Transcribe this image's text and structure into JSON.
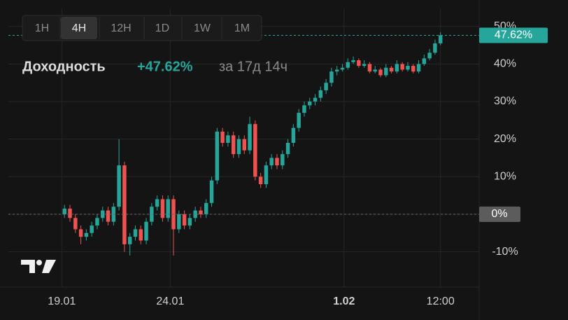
{
  "header": {
    "label": "Доходность",
    "return": "+47.62%",
    "period": "за 17д 14ч"
  },
  "intervals": {
    "items": [
      "1H",
      "4H",
      "12H",
      "1D",
      "1W",
      "1M"
    ],
    "active": "4H"
  },
  "chart_data": {
    "type": "candlestick",
    "open": [
      0,
      1.5,
      -1,
      -4,
      -6,
      -5,
      -3,
      -1,
      1,
      -2,
      2,
      13,
      -8,
      -6,
      -4,
      -7,
      -2,
      2,
      4,
      -1,
      4,
      -4,
      0,
      -3,
      -1,
      1,
      0,
      3,
      9,
      22,
      19,
      21,
      16,
      20,
      17,
      24,
      10,
      8,
      13,
      15,
      13,
      16,
      19,
      23,
      27,
      29,
      30,
      31,
      33,
      35,
      38,
      38.5,
      39,
      40.5,
      41,
      39.5,
      40,
      38,
      38.5,
      37,
      39,
      38,
      40,
      38.5,
      39.5,
      38,
      40,
      41.5,
      43,
      45.5
    ],
    "high": [
      2.5,
      2.5,
      0,
      -3,
      -4,
      -2,
      0,
      2,
      2,
      3,
      20,
      14,
      -5,
      -3,
      -3,
      -1,
      3,
      5,
      5,
      5,
      5,
      1,
      1,
      0,
      2,
      2,
      4,
      10,
      23,
      23,
      22,
      22,
      21,
      21,
      26,
      25,
      11,
      14,
      16,
      16,
      17,
      20,
      24,
      28,
      30,
      31,
      32,
      34,
      36,
      39,
      39.5,
      40,
      41.5,
      42,
      41.5,
      41,
      40.5,
      39.5,
      39,
      40,
      39.5,
      41,
      40.5,
      40.5,
      40,
      41,
      42.5,
      44,
      46.5,
      48.5
    ],
    "low": [
      -1,
      -2,
      -5,
      -8,
      -7,
      -6,
      -4,
      -2,
      -3,
      -3,
      1,
      -10,
      -11,
      -7,
      -8,
      -8,
      -3,
      1,
      -2,
      -2,
      -11,
      -5,
      -4,
      -4,
      -2,
      -1,
      -1,
      2,
      8,
      18,
      18,
      15,
      15,
      16,
      16,
      9,
      7,
      7,
      12,
      12,
      12,
      15,
      18,
      22,
      26,
      28,
      29,
      30,
      32,
      34,
      37,
      38,
      38.5,
      40,
      39,
      39,
      37.5,
      37.5,
      36.5,
      36.5,
      37.5,
      37.5,
      38,
      38,
      37.5,
      37.5,
      39.5,
      41,
      42.5,
      45
    ],
    "close": [
      1.5,
      -1,
      -4,
      -6,
      -5,
      -3,
      -1,
      1,
      -2,
      2,
      13,
      -8,
      -6,
      -4,
      -7,
      -2,
      2,
      4,
      -1,
      4,
      -4,
      0,
      -3,
      -1,
      1,
      0,
      3,
      9,
      22,
      19,
      21,
      16,
      20,
      17,
      24,
      10,
      8,
      13,
      15,
      13,
      16,
      19,
      23,
      27,
      29,
      30,
      31,
      33,
      35,
      38,
      38.5,
      39,
      40.5,
      41,
      39.5,
      40,
      38,
      38.5,
      37,
      39,
      38,
      40,
      38.5,
      39.5,
      38,
      40,
      41.5,
      43,
      45.5,
      47.62
    ],
    "up_color": "#26a69a",
    "down_color": "#ef5350",
    "xlim": [
      -10.3,
      76.1
    ],
    "xticks": [
      {
        "value": -0.5,
        "label": "19.01"
      },
      {
        "value": 19.4,
        "label": "24.01"
      },
      {
        "value": 51.3,
        "label": "1.02"
      },
      {
        "value": 69,
        "label": "12:00"
      }
    ],
    "ylim": [
      -19.4,
      54.8
    ],
    "yticks": [
      {
        "value": -10,
        "label": "-10%"
      },
      {
        "value": 0,
        "label": "0%"
      },
      {
        "value": 10,
        "label": "10%"
      },
      {
        "value": 20,
        "label": "20%"
      },
      {
        "value": 30,
        "label": "30%"
      },
      {
        "value": 40,
        "label": "40%"
      },
      {
        "value": 50,
        "label": "50%"
      }
    ],
    "current": {
      "value": 47.62,
      "label": "47.62%"
    },
    "baseline": {
      "value": 0,
      "label": "0%"
    },
    "grid": true
  }
}
